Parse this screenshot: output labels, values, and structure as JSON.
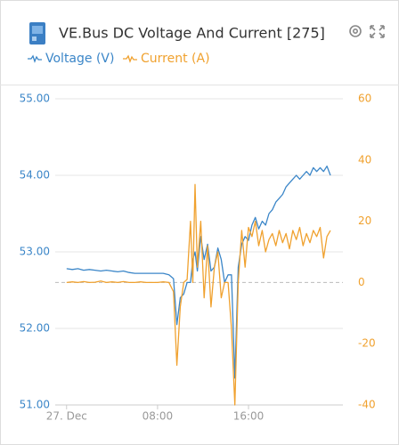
{
  "chart_data": {
    "type": "line",
    "title": "VE.Bus DC Voltage And Current [275]",
    "x": [
      0,
      0.5,
      1,
      1.5,
      2,
      2.5,
      3,
      3.5,
      4,
      4.5,
      5,
      5.5,
      6,
      6.5,
      7,
      7.5,
      8,
      8.5,
      9,
      9.4,
      9.7,
      10,
      10.3,
      10.6,
      10.9,
      11.1,
      11.3,
      11.5,
      11.8,
      12.1,
      12.4,
      12.7,
      13.0,
      13.3,
      13.6,
      13.9,
      14.2,
      14.5,
      14.8,
      15.1,
      15.4,
      15.7,
      16.0,
      16.3,
      16.6,
      16.9,
      17.2,
      17.5,
      17.8,
      18.1,
      18.4,
      18.7,
      19.0,
      19.3,
      19.6,
      19.9,
      20.2,
      20.5,
      20.8,
      21.1,
      21.4,
      21.7,
      22.0,
      22.3,
      22.6,
      22.9,
      23.2
    ],
    "series": [
      {
        "name": "Voltage (V)",
        "color": "#3b86c8",
        "values": [
          52.78,
          52.77,
          52.78,
          52.76,
          52.77,
          52.76,
          52.75,
          52.76,
          52.75,
          52.74,
          52.75,
          52.73,
          52.72,
          52.72,
          52.72,
          52.72,
          52.72,
          52.72,
          52.7,
          52.65,
          52.05,
          52.4,
          52.45,
          52.6,
          52.6,
          52.9,
          53.0,
          52.75,
          53.2,
          52.9,
          53.1,
          52.75,
          52.8,
          53.05,
          52.9,
          52.6,
          52.7,
          52.7,
          51.35,
          52.8,
          53.1,
          53.2,
          53.15,
          53.35,
          53.45,
          53.3,
          53.4,
          53.35,
          53.5,
          53.55,
          53.65,
          53.7,
          53.75,
          53.85,
          53.9,
          53.95,
          54.0,
          53.95,
          54.0,
          54.05,
          54.0,
          54.1,
          54.05,
          54.1,
          54.05,
          54.12,
          54.0
        ]
      },
      {
        "name": "Current (A)",
        "color": "#f0a12e",
        "axis": "y2",
        "values": [
          0,
          0.2,
          0,
          0.3,
          0,
          0.1,
          0.5,
          0,
          0.2,
          0,
          0.3,
          0,
          0,
          0.2,
          0,
          0,
          0,
          0.2,
          0,
          -3,
          -27,
          -8,
          0,
          1,
          20,
          0,
          32,
          5,
          20,
          -5,
          12,
          -8,
          5,
          10,
          -5,
          0,
          0,
          -15,
          -40,
          0,
          17,
          5,
          18,
          15,
          20,
          12,
          17,
          10,
          14,
          16,
          12,
          17,
          13,
          16,
          11,
          17,
          14,
          18,
          12,
          16,
          13,
          17,
          15,
          18,
          8,
          15,
          17
        ]
      }
    ],
    "xlim": [
      -1,
      24.3
    ],
    "xticks": [
      {
        "value": 0,
        "label": "27. Dec"
      },
      {
        "value": 8,
        "label": "08:00"
      },
      {
        "value": 16,
        "label": "16:00"
      }
    ],
    "ylim": [
      51,
      55
    ],
    "yticks": [
      {
        "value": 51,
        "label": "51.00"
      },
      {
        "value": 52,
        "label": "52.00"
      },
      {
        "value": 53,
        "label": "53.00"
      },
      {
        "value": 54,
        "label": "54.00"
      },
      {
        "value": 55,
        "label": "55.00"
      }
    ],
    "y2lim": [
      -40,
      60
    ],
    "y2ticks": [
      -40,
      -20,
      0,
      20,
      40,
      60
    ],
    "grid": true
  }
}
